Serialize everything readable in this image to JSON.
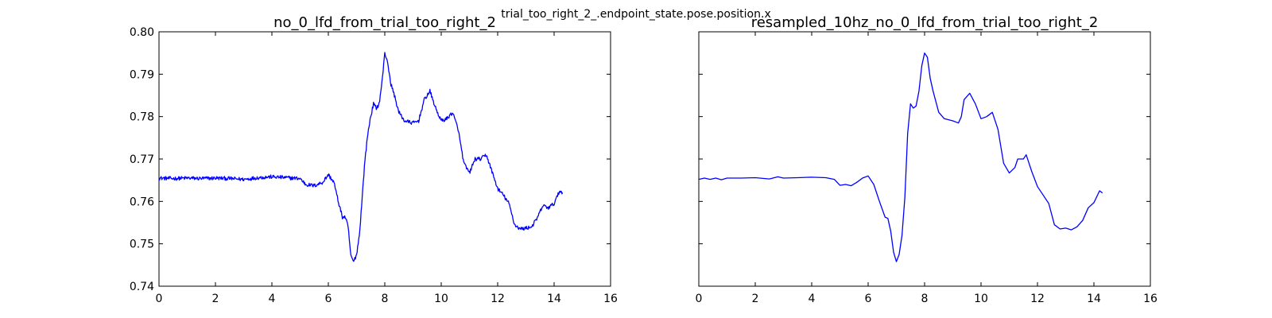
{
  "suptitle": "trial_too_right_2_.endpoint_state.pose.position.x",
  "chart_data": [
    {
      "type": "line",
      "title": "no_0_lfd_from_trial_too_right_2",
      "xlabel": "",
      "ylabel": "",
      "xlim": [
        0,
        16
      ],
      "ylim": [
        0.74,
        0.8
      ],
      "xticks": [
        0,
        2,
        4,
        6,
        8,
        10,
        12,
        14,
        16
      ],
      "yticks": [
        0.74,
        0.75,
        0.76,
        0.77,
        0.78,
        0.79,
        0.8
      ],
      "ytick_labels": [
        "0.74",
        "0.75",
        "0.76",
        "0.77",
        "0.78",
        "0.79",
        "0.80"
      ],
      "grid": false,
      "noisy": true,
      "series": [
        {
          "color": "#0000ff",
          "x": [
            0,
            0.5,
            1,
            1.5,
            2,
            2.5,
            3,
            3.5,
            4,
            4.5,
            5,
            5.2,
            5.5,
            5.8,
            6.0,
            6.2,
            6.35,
            6.5,
            6.6,
            6.7,
            6.8,
            6.9,
            7.0,
            7.1,
            7.2,
            7.3,
            7.4,
            7.5,
            7.6,
            7.7,
            7.8,
            7.9,
            8.0,
            8.1,
            8.2,
            8.3,
            8.5,
            8.7,
            9.0,
            9.2,
            9.4,
            9.6,
            9.8,
            10.0,
            10.2,
            10.4,
            10.6,
            10.8,
            11.0,
            11.2,
            11.4,
            11.6,
            11.8,
            12.0,
            12.2,
            12.4,
            12.6,
            12.8,
            13.0,
            13.2,
            13.4,
            13.6,
            13.8,
            14.0,
            14.2,
            14.3
          ],
          "y": [
            0.7655,
            0.7654,
            0.7655,
            0.7654,
            0.7655,
            0.7654,
            0.7652,
            0.7656,
            0.7658,
            0.7656,
            0.7654,
            0.764,
            0.7637,
            0.7645,
            0.7663,
            0.7645,
            0.76,
            0.7563,
            0.7563,
            0.754,
            0.747,
            0.7458,
            0.7475,
            0.752,
            0.761,
            0.77,
            0.776,
            0.78,
            0.783,
            0.782,
            0.783,
            0.788,
            0.795,
            0.793,
            0.788,
            0.786,
            0.781,
            0.779,
            0.7785,
            0.779,
            0.784,
            0.786,
            0.782,
            0.779,
            0.7795,
            0.781,
            0.777,
            0.769,
            0.7667,
            0.77,
            0.77,
            0.771,
            0.767,
            0.763,
            0.7615,
            0.7595,
            0.7545,
            0.7535,
            0.7537,
            0.754,
            0.756,
            0.759,
            0.7585,
            0.7595,
            0.7625,
            0.762
          ]
        }
      ]
    },
    {
      "type": "line",
      "title": "resampled_10hz_no_0_lfd_from_trial_too_right_2",
      "xlabel": "",
      "ylabel": "",
      "xlim": [
        0,
        16
      ],
      "ylim": [
        0.74,
        0.8
      ],
      "xticks": [
        0,
        2,
        4,
        6,
        8,
        10,
        12,
        14,
        16
      ],
      "yticks": [
        0.74,
        0.75,
        0.76,
        0.77,
        0.78,
        0.79,
        0.8
      ],
      "ytick_labels": [],
      "grid": false,
      "noisy": false,
      "series": [
        {
          "color": "#0000ff",
          "x": [
            0,
            0.2,
            0.4,
            0.6,
            0.8,
            1.0,
            1.5,
            2.0,
            2.5,
            2.8,
            3.0,
            3.5,
            4.0,
            4.5,
            4.8,
            5.0,
            5.2,
            5.4,
            5.6,
            5.8,
            6.0,
            6.2,
            6.4,
            6.6,
            6.7,
            6.8,
            6.9,
            7.0,
            7.1,
            7.2,
            7.3,
            7.4,
            7.5,
            7.6,
            7.7,
            7.8,
            7.9,
            8.0,
            8.1,
            8.2,
            8.3,
            8.5,
            8.7,
            9.0,
            9.2,
            9.3,
            9.4,
            9.6,
            9.8,
            10.0,
            10.2,
            10.4,
            10.6,
            10.8,
            11.0,
            11.2,
            11.3,
            11.5,
            11.6,
            11.8,
            12.0,
            12.2,
            12.4,
            12.6,
            12.8,
            13.0,
            13.2,
            13.4,
            13.6,
            13.8,
            14.0,
            14.2,
            14.3
          ],
          "y": [
            0.7652,
            0.7655,
            0.7652,
            0.7655,
            0.7651,
            0.7655,
            0.7655,
            0.7656,
            0.7653,
            0.7658,
            0.7655,
            0.7656,
            0.7657,
            0.7656,
            0.7652,
            0.7638,
            0.764,
            0.7637,
            0.7645,
            0.7655,
            0.766,
            0.764,
            0.76,
            0.7563,
            0.756,
            0.753,
            0.748,
            0.7458,
            0.7475,
            0.752,
            0.761,
            0.776,
            0.783,
            0.782,
            0.7825,
            0.786,
            0.792,
            0.795,
            0.794,
            0.789,
            0.786,
            0.781,
            0.7795,
            0.779,
            0.7785,
            0.78,
            0.784,
            0.7855,
            0.783,
            0.7795,
            0.78,
            0.781,
            0.777,
            0.769,
            0.7667,
            0.768,
            0.77,
            0.77,
            0.771,
            0.767,
            0.7635,
            0.7615,
            0.7595,
            0.7545,
            0.7535,
            0.7537,
            0.7533,
            0.754,
            0.7555,
            0.7585,
            0.7597,
            0.7625,
            0.762
          ]
        }
      ]
    }
  ]
}
